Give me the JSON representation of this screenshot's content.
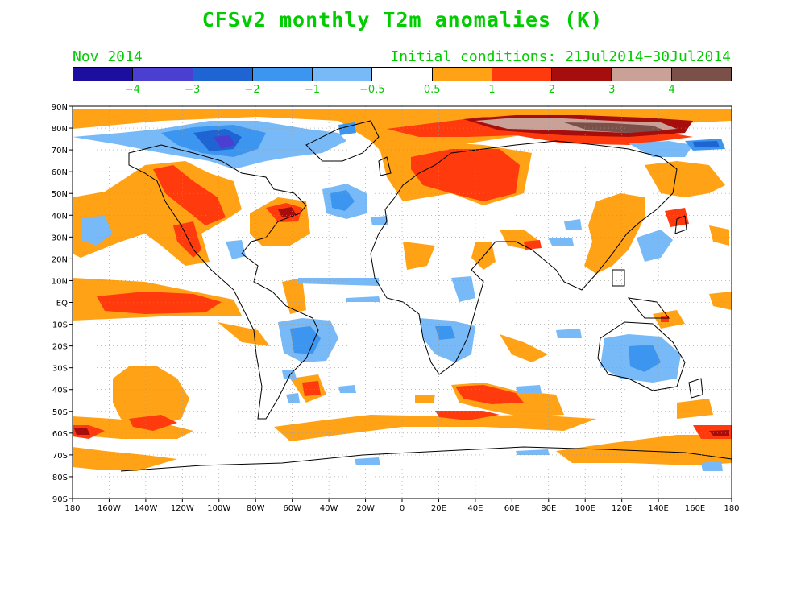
{
  "title": "CFSv2 monthly T2m anomalies (K)",
  "valid_month": "Nov 2014",
  "initial_conditions": "Initial conditions: 21Jul2014−30Jul2014",
  "colorbar": {
    "colors": [
      "#1c0fa0",
      "#4b3fd2",
      "#1e64d2",
      "#3c96ef",
      "#78b9f7",
      "#ffffff",
      "#ffa216",
      "#ff3a0c",
      "#a60e0e",
      "#c9a197",
      "#7a5048"
    ],
    "labels": [
      "−4",
      "−3",
      "−2",
      "−1",
      "−0.5",
      "0.5",
      "1",
      "2",
      "3",
      "4"
    ]
  },
  "map": {
    "lat_labels": [
      "90N",
      "80N",
      "70N",
      "60N",
      "50N",
      "40N",
      "30N",
      "20N",
      "10N",
      "EQ",
      "10S",
      "20S",
      "30S",
      "40S",
      "50S",
      "60S",
      "70S",
      "80S",
      "90S"
    ],
    "lon_labels": [
      "180",
      "160W",
      "140W",
      "120W",
      "100W",
      "80W",
      "60W",
      "40W",
      "20W",
      "0",
      "20E",
      "40E",
      "60E",
      "80E",
      "100E",
      "120E",
      "140E",
      "160E",
      "180"
    ]
  }
}
